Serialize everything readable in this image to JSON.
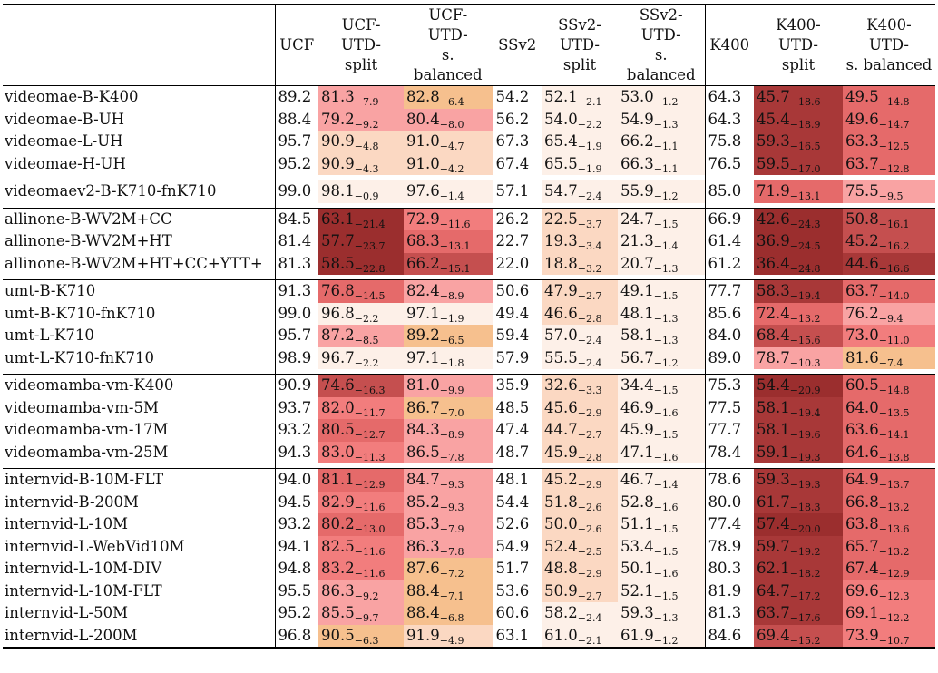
{
  "headers": [
    "",
    "UCF",
    "UCF-\nUTD-\nsplit",
    "UCF-\nUTD-\ns. balanced",
    "SSv2",
    "SSv2-\nUTD-\nsplit",
    "SSv2-\nUTD-\ns. balanced",
    "K400",
    "K400-\nUTD-\nsplit",
    "K400-\nUTD-\ns. balanced"
  ],
  "groups": [
    {
      "rows": [
        {
          "name": "videomae-B-K400",
          "ucf": "89.2",
          "ucf_split": {
            "v": "81.3",
            "d": "−7.9"
          },
          "ucf_bal": {
            "v": "82.8",
            "d": "−6.4"
          },
          "ssv2": "54.2",
          "ss_split": {
            "v": "52.1",
            "d": "−2.1"
          },
          "ss_bal": {
            "v": "53.0",
            "d": "−1.2"
          },
          "k400": "64.3",
          "k_split": {
            "v": "45.7",
            "d": "−18.6"
          },
          "k_bal": {
            "v": "49.5",
            "d": "−14.8"
          }
        },
        {
          "name": "videomae-B-UH",
          "ucf": "88.4",
          "ucf_split": {
            "v": "79.2",
            "d": "−9.2"
          },
          "ucf_bal": {
            "v": "80.4",
            "d": "−8.0"
          },
          "ssv2": "56.2",
          "ss_split": {
            "v": "54.0",
            "d": "−2.2"
          },
          "ss_bal": {
            "v": "54.9",
            "d": "−1.3"
          },
          "k400": "64.3",
          "k_split": {
            "v": "45.4",
            "d": "−18.9"
          },
          "k_bal": {
            "v": "49.6",
            "d": "−14.7"
          }
        },
        {
          "name": "videomae-L-UH",
          "ucf": "95.7",
          "ucf_split": {
            "v": "90.9",
            "d": "−4.8"
          },
          "ucf_bal": {
            "v": "91.0",
            "d": "−4.7"
          },
          "ssv2": "67.3",
          "ss_split": {
            "v": "65.4",
            "d": "−1.9"
          },
          "ss_bal": {
            "v": "66.2",
            "d": "−1.1"
          },
          "k400": "75.8",
          "k_split": {
            "v": "59.3",
            "d": "−16.5"
          },
          "k_bal": {
            "v": "63.3",
            "d": "−12.5"
          }
        },
        {
          "name": "videomae-H-UH",
          "ucf": "95.2",
          "ucf_split": {
            "v": "90.9",
            "d": "−4.3"
          },
          "ucf_bal": {
            "v": "91.0",
            "d": "−4.2"
          },
          "ssv2": "67.4",
          "ss_split": {
            "v": "65.5",
            "d": "−1.9"
          },
          "ss_bal": {
            "v": "66.3",
            "d": "−1.1"
          },
          "k400": "76.5",
          "k_split": {
            "v": "59.5",
            "d": "−17.0"
          },
          "k_bal": {
            "v": "63.7",
            "d": "−12.8"
          }
        }
      ]
    },
    {
      "rows": [
        {
          "name": "videomaev2-B-K710-fnK710",
          "ucf": "99.0",
          "ucf_split": {
            "v": "98.1",
            "d": "−0.9"
          },
          "ucf_bal": {
            "v": "97.6",
            "d": "−1.4"
          },
          "ssv2": "57.1",
          "ss_split": {
            "v": "54.7",
            "d": "−2.4"
          },
          "ss_bal": {
            "v": "55.9",
            "d": "−1.2"
          },
          "k400": "85.0",
          "k_split": {
            "v": "71.9",
            "d": "−13.1"
          },
          "k_bal": {
            "v": "75.5",
            "d": "−9.5"
          }
        }
      ]
    },
    {
      "rows": [
        {
          "name": "allinone-B-WV2M+CC",
          "ucf": "84.5",
          "ucf_split": {
            "v": "63.1",
            "d": "−21.4"
          },
          "ucf_bal": {
            "v": "72.9",
            "d": "−11.6"
          },
          "ssv2": "26.2",
          "ss_split": {
            "v": "22.5",
            "d": "−3.7"
          },
          "ss_bal": {
            "v": "24.7",
            "d": "−1.5"
          },
          "k400": "66.9",
          "k_split": {
            "v": "42.6",
            "d": "−24.3"
          },
          "k_bal": {
            "v": "50.8",
            "d": "−16.1"
          }
        },
        {
          "name": "allinone-B-WV2M+HT",
          "ucf": "81.4",
          "ucf_split": {
            "v": "57.7",
            "d": "−23.7"
          },
          "ucf_bal": {
            "v": "68.3",
            "d": "−13.1"
          },
          "ssv2": "22.7",
          "ss_split": {
            "v": "19.3",
            "d": "−3.4"
          },
          "ss_bal": {
            "v": "21.3",
            "d": "−1.4"
          },
          "k400": "61.4",
          "k_split": {
            "v": "36.9",
            "d": "−24.5"
          },
          "k_bal": {
            "v": "45.2",
            "d": "−16.2"
          }
        },
        {
          "name": "allinone-B-WV2M+HT+CC+YTT+",
          "ucf": "81.3",
          "ucf_split": {
            "v": "58.5",
            "d": "−22.8"
          },
          "ucf_bal": {
            "v": "66.2",
            "d": "−15.1"
          },
          "ssv2": "22.0",
          "ss_split": {
            "v": "18.8",
            "d": "−3.2"
          },
          "ss_bal": {
            "v": "20.7",
            "d": "−1.3"
          },
          "k400": "61.2",
          "k_split": {
            "v": "36.4",
            "d": "−24.8"
          },
          "k_bal": {
            "v": "44.6",
            "d": "−16.6"
          }
        }
      ]
    },
    {
      "rows": [
        {
          "name": "umt-B-K710",
          "ucf": "91.3",
          "ucf_split": {
            "v": "76.8",
            "d": "−14.5"
          },
          "ucf_bal": {
            "v": "82.4",
            "d": "−8.9"
          },
          "ssv2": "50.6",
          "ss_split": {
            "v": "47.9",
            "d": "−2.7"
          },
          "ss_bal": {
            "v": "49.1",
            "d": "−1.5"
          },
          "k400": "77.7",
          "k_split": {
            "v": "58.3",
            "d": "−19.4"
          },
          "k_bal": {
            "v": "63.7",
            "d": "−14.0"
          }
        },
        {
          "name": "umt-B-K710-fnK710",
          "ucf": "99.0",
          "ucf_split": {
            "v": "96.8",
            "d": "−2.2"
          },
          "ucf_bal": {
            "v": "97.1",
            "d": "−1.9"
          },
          "ssv2": "49.4",
          "ss_split": {
            "v": "46.6",
            "d": "−2.8"
          },
          "ss_bal": {
            "v": "48.1",
            "d": "−1.3"
          },
          "k400": "85.6",
          "k_split": {
            "v": "72.4",
            "d": "−13.2"
          },
          "k_bal": {
            "v": "76.2",
            "d": "−9.4"
          }
        },
        {
          "name": "umt-L-K710",
          "ucf": "95.7",
          "ucf_split": {
            "v": "87.2",
            "d": "−8.5"
          },
          "ucf_bal": {
            "v": "89.2",
            "d": "−6.5"
          },
          "ssv2": "59.4",
          "ss_split": {
            "v": "57.0",
            "d": "−2.4"
          },
          "ss_bal": {
            "v": "58.1",
            "d": "−1.3"
          },
          "k400": "84.0",
          "k_split": {
            "v": "68.4",
            "d": "−15.6"
          },
          "k_bal": {
            "v": "73.0",
            "d": "−11.0"
          }
        },
        {
          "name": "umt-L-K710-fnK710",
          "ucf": "98.9",
          "ucf_split": {
            "v": "96.7",
            "d": "−2.2"
          },
          "ucf_bal": {
            "v": "97.1",
            "d": "−1.8"
          },
          "ssv2": "57.9",
          "ss_split": {
            "v": "55.5",
            "d": "−2.4"
          },
          "ss_bal": {
            "v": "56.7",
            "d": "−1.2"
          },
          "k400": "89.0",
          "k_split": {
            "v": "78.7",
            "d": "−10.3"
          },
          "k_bal": {
            "v": "81.6",
            "d": "−7.4"
          }
        }
      ]
    },
    {
      "rows": [
        {
          "name": "videomamba-vm-K400",
          "ucf": "90.9",
          "ucf_split": {
            "v": "74.6",
            "d": "−16.3"
          },
          "ucf_bal": {
            "v": "81.0",
            "d": "−9.9"
          },
          "ssv2": "35.9",
          "ss_split": {
            "v": "32.6",
            "d": "−3.3"
          },
          "ss_bal": {
            "v": "34.4",
            "d": "−1.5"
          },
          "k400": "75.3",
          "k_split": {
            "v": "54.4",
            "d": "−20.9"
          },
          "k_bal": {
            "v": "60.5",
            "d": "−14.8"
          }
        },
        {
          "name": "videomamba-vm-5M",
          "ucf": "93.7",
          "ucf_split": {
            "v": "82.0",
            "d": "−11.7"
          },
          "ucf_bal": {
            "v": "86.7",
            "d": "−7.0"
          },
          "ssv2": "48.5",
          "ss_split": {
            "v": "45.6",
            "d": "−2.9"
          },
          "ss_bal": {
            "v": "46.9",
            "d": "−1.6"
          },
          "k400": "77.5",
          "k_split": {
            "v": "58.1",
            "d": "−19.4"
          },
          "k_bal": {
            "v": "64.0",
            "d": "−13.5"
          }
        },
        {
          "name": "videomamba-vm-17M",
          "ucf": "93.2",
          "ucf_split": {
            "v": "80.5",
            "d": "−12.7"
          },
          "ucf_bal": {
            "v": "84.3",
            "d": "−8.9"
          },
          "ssv2": "47.4",
          "ss_split": {
            "v": "44.7",
            "d": "−2.7"
          },
          "ss_bal": {
            "v": "45.9",
            "d": "−1.5"
          },
          "k400": "77.7",
          "k_split": {
            "v": "58.1",
            "d": "−19.6"
          },
          "k_bal": {
            "v": "63.6",
            "d": "−14.1"
          }
        },
        {
          "name": "videomamba-vm-25M",
          "ucf": "94.3",
          "ucf_split": {
            "v": "83.0",
            "d": "−11.3"
          },
          "ucf_bal": {
            "v": "86.5",
            "d": "−7.8"
          },
          "ssv2": "48.7",
          "ss_split": {
            "v": "45.9",
            "d": "−2.8"
          },
          "ss_bal": {
            "v": "47.1",
            "d": "−1.6"
          },
          "k400": "78.4",
          "k_split": {
            "v": "59.1",
            "d": "−19.3"
          },
          "k_bal": {
            "v": "64.6",
            "d": "−13.8"
          }
        }
      ]
    },
    {
      "rows": [
        {
          "name": "internvid-B-10M-FLT",
          "ucf": "94.0",
          "ucf_split": {
            "v": "81.1",
            "d": "−12.9"
          },
          "ucf_bal": {
            "v": "84.7",
            "d": "−9.3"
          },
          "ssv2": "48.1",
          "ss_split": {
            "v": "45.2",
            "d": "−2.9"
          },
          "ss_bal": {
            "v": "46.7",
            "d": "−1.4"
          },
          "k400": "78.6",
          "k_split": {
            "v": "59.3",
            "d": "−19.3"
          },
          "k_bal": {
            "v": "64.9",
            "d": "−13.7"
          }
        },
        {
          "name": "internvid-B-200M",
          "ucf": "94.5",
          "ucf_split": {
            "v": "82.9",
            "d": "−11.6"
          },
          "ucf_bal": {
            "v": "85.2",
            "d": "−9.3"
          },
          "ssv2": "54.4",
          "ss_split": {
            "v": "51.8",
            "d": "−2.6"
          },
          "ss_bal": {
            "v": "52.8",
            "d": "−1.6"
          },
          "k400": "80.0",
          "k_split": {
            "v": "61.7",
            "d": "−18.3"
          },
          "k_bal": {
            "v": "66.8",
            "d": "−13.2"
          }
        },
        {
          "name": "internvid-L-10M",
          "ucf": "93.2",
          "ucf_split": {
            "v": "80.2",
            "d": "−13.0"
          },
          "ucf_bal": {
            "v": "85.3",
            "d": "−7.9"
          },
          "ssv2": "52.6",
          "ss_split": {
            "v": "50.0",
            "d": "−2.6"
          },
          "ss_bal": {
            "v": "51.1",
            "d": "−1.5"
          },
          "k400": "77.4",
          "k_split": {
            "v": "57.4",
            "d": "−20.0"
          },
          "k_bal": {
            "v": "63.8",
            "d": "−13.6"
          }
        },
        {
          "name": "internvid-L-WebVid10M",
          "ucf": "94.1",
          "ucf_split": {
            "v": "82.5",
            "d": "−11.6"
          },
          "ucf_bal": {
            "v": "86.3",
            "d": "−7.8"
          },
          "ssv2": "54.9",
          "ss_split": {
            "v": "52.4",
            "d": "−2.5"
          },
          "ss_bal": {
            "v": "53.4",
            "d": "−1.5"
          },
          "k400": "78.9",
          "k_split": {
            "v": "59.7",
            "d": "−19.2"
          },
          "k_bal": {
            "v": "65.7",
            "d": "−13.2"
          }
        },
        {
          "name": "internvid-L-10M-DIV",
          "ucf": "94.8",
          "ucf_split": {
            "v": "83.2",
            "d": "−11.6"
          },
          "ucf_bal": {
            "v": "87.6",
            "d": "−7.2"
          },
          "ssv2": "51.7",
          "ss_split": {
            "v": "48.8",
            "d": "−2.9"
          },
          "ss_bal": {
            "v": "50.1",
            "d": "−1.6"
          },
          "k400": "80.3",
          "k_split": {
            "v": "62.1",
            "d": "−18.2"
          },
          "k_bal": {
            "v": "67.4",
            "d": "−12.9"
          }
        },
        {
          "name": "internvid-L-10M-FLT",
          "ucf": "95.5",
          "ucf_split": {
            "v": "86.3",
            "d": "−9.2"
          },
          "ucf_bal": {
            "v": "88.4",
            "d": "−7.1"
          },
          "ssv2": "53.6",
          "ss_split": {
            "v": "50.9",
            "d": "−2.7"
          },
          "ss_bal": {
            "v": "52.1",
            "d": "−1.5"
          },
          "k400": "81.9",
          "k_split": {
            "v": "64.7",
            "d": "−17.2"
          },
          "k_bal": {
            "v": "69.6",
            "d": "−12.3"
          }
        },
        {
          "name": "internvid-L-50M",
          "ucf": "95.2",
          "ucf_split": {
            "v": "85.5",
            "d": "−9.7"
          },
          "ucf_bal": {
            "v": "88.4",
            "d": "−6.8"
          },
          "ssv2": "60.6",
          "ss_split": {
            "v": "58.2",
            "d": "−2.4"
          },
          "ss_bal": {
            "v": "59.3",
            "d": "−1.3"
          },
          "k400": "81.3",
          "k_split": {
            "v": "63.7",
            "d": "−17.6"
          },
          "k_bal": {
            "v": "69.1",
            "d": "−12.2"
          }
        },
        {
          "name": "internvid-L-200M",
          "ucf": "96.8",
          "ucf_split": {
            "v": "90.5",
            "d": "−6.3"
          },
          "ucf_bal": {
            "v": "91.9",
            "d": "−4.9"
          },
          "ssv2": "63.1",
          "ss_split": {
            "v": "61.0",
            "d": "−2.1"
          },
          "ss_bal": {
            "v": "61.9",
            "d": "−1.2"
          },
          "k400": "84.6",
          "k_split": {
            "v": "69.4",
            "d": "−15.2"
          },
          "k_bal": {
            "v": "73.9",
            "d": "−10.7"
          }
        }
      ]
    }
  ]
}
